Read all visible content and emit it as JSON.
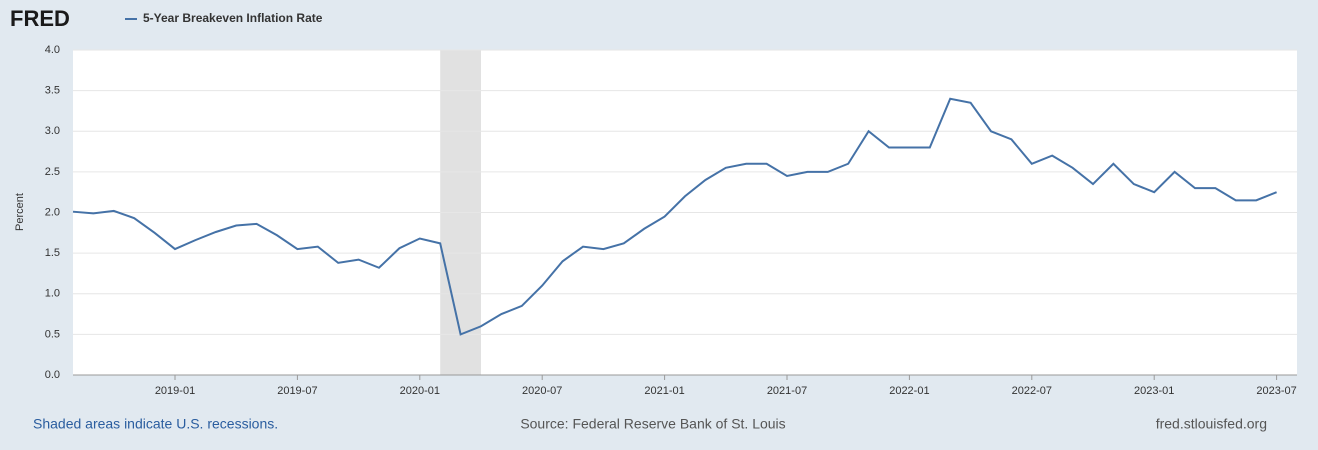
{
  "chart_data": {
    "type": "line",
    "logo": "FRED",
    "title": "5-Year Breakeven Inflation Rate",
    "ylabel": "Percent",
    "note": "Shaded areas indicate U.S. recessions.",
    "source": "Source: Federal Reserve Bank of St. Louis",
    "site": "fred.stlouisfed.org",
    "x": [
      "2018-08",
      "2018-09",
      "2018-10",
      "2018-11",
      "2018-12",
      "2019-01",
      "2019-02",
      "2019-03",
      "2019-04",
      "2019-05",
      "2019-06",
      "2019-07",
      "2019-08",
      "2019-09",
      "2019-10",
      "2019-11",
      "2019-12",
      "2020-01",
      "2020-02",
      "2020-03",
      "2020-04",
      "2020-05",
      "2020-06",
      "2020-07",
      "2020-08",
      "2020-09",
      "2020-10",
      "2020-11",
      "2020-12",
      "2021-01",
      "2021-02",
      "2021-03",
      "2021-04",
      "2021-05",
      "2021-06",
      "2021-07",
      "2021-08",
      "2021-09",
      "2021-10",
      "2021-11",
      "2021-12",
      "2022-01",
      "2022-02",
      "2022-03",
      "2022-04",
      "2022-05",
      "2022-06",
      "2022-07",
      "2022-08",
      "2022-09",
      "2022-10",
      "2022-11",
      "2022-12",
      "2023-01",
      "2023-02",
      "2023-03",
      "2023-04",
      "2023-05",
      "2023-06",
      "2023-07"
    ],
    "series": [
      {
        "name": "5-Year Breakeven Inflation Rate",
        "color": "#4572a7",
        "values": [
          2.01,
          1.99,
          2.02,
          1.93,
          1.75,
          1.55,
          1.66,
          1.76,
          1.84,
          1.86,
          1.72,
          1.55,
          1.58,
          1.38,
          1.42,
          1.32,
          1.56,
          1.68,
          1.62,
          0.5,
          0.6,
          0.75,
          0.85,
          1.1,
          1.4,
          1.58,
          1.55,
          1.62,
          1.8,
          1.95,
          2.2,
          2.4,
          2.55,
          2.6,
          2.6,
          2.45,
          2.5,
          2.5,
          2.6,
          3.0,
          2.8,
          2.8,
          2.8,
          3.4,
          3.35,
          3.0,
          2.9,
          2.6,
          2.7,
          2.55,
          2.35,
          2.6,
          2.35,
          2.25,
          2.5,
          2.3,
          2.3,
          2.15,
          2.15,
          2.25
        ]
      }
    ],
    "recessions": [
      [
        "2020-02",
        "2020-04"
      ]
    ],
    "xlim": [
      "2018-08",
      "2023-08"
    ],
    "xticks": [
      "2019-01",
      "2019-07",
      "2020-01",
      "2020-07",
      "2021-01",
      "2021-07",
      "2022-01",
      "2022-07",
      "2023-01",
      "2023-07"
    ],
    "ylim": [
      0,
      4
    ],
    "yticks": [
      {
        "value": 0,
        "label": "0.0"
      },
      0.5,
      {
        "value": 1,
        "label": "1.0"
      },
      1.5,
      {
        "value": 2,
        "label": "2.0"
      },
      2.5,
      {
        "value": 3,
        "label": "3.0"
      },
      3.5,
      {
        "value": 4,
        "label": "4.0"
      }
    ],
    "grid": true
  }
}
